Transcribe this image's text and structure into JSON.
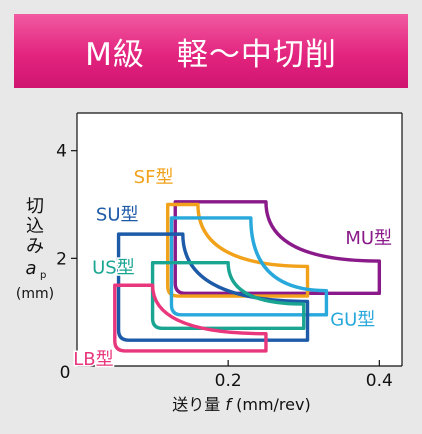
{
  "header": {
    "title": "M級　軽～中切削"
  },
  "chart_data": {
    "type": "area",
    "title": "M級　軽～中切削",
    "xlabel_prefix": "送り量",
    "xlabel_var": "f",
    "xlabel_unit": "(mm/rev)",
    "ylabel_chars": [
      "切",
      "込",
      "み"
    ],
    "ylabel_var": "a",
    "ylabel_sub": "p",
    "ylabel_unit": "(mm)",
    "xlim": [
      0,
      0.43
    ],
    "ylim": [
      0,
      4.7
    ],
    "x_ticks": [
      {
        "v": 0,
        "label": "0"
      },
      {
        "v": 0.2,
        "label": "0.2"
      },
      {
        "v": 0.4,
        "label": "0.4"
      }
    ],
    "y_ticks": [
      {
        "v": 2,
        "label": "2"
      },
      {
        "v": 4,
        "label": "4"
      }
    ],
    "origin_label": "0",
    "grid": false,
    "series": [
      {
        "name": "MU型",
        "color": "#8a1a8a",
        "x_left": 0.13,
        "x_right": 0.4,
        "y_bottom": 1.35,
        "y_top": 3.05,
        "x_knee": 0.25,
        "y_knee": 1.95,
        "label_x": 0.355,
        "label_y": 2.27
      },
      {
        "name": "SF型",
        "color": "#f2a21a",
        "x_left": 0.12,
        "x_right": 0.305,
        "y_bottom": 1.3,
        "y_top": 3.0,
        "x_knee": 0.16,
        "y_knee": 1.85,
        "label_x": 0.075,
        "label_y": 3.4
      },
      {
        "name": "GU型",
        "color": "#29a8dc",
        "x_left": 0.125,
        "x_right": 0.33,
        "y_bottom": 0.95,
        "y_top": 2.75,
        "x_knee": 0.23,
        "y_knee": 1.4,
        "label_x": 0.335,
        "label_y": 0.75
      },
      {
        "name": "SU型",
        "color": "#1d5aa8",
        "x_left": 0.055,
        "x_right": 0.305,
        "y_bottom": 0.48,
        "y_top": 2.45,
        "x_knee": 0.14,
        "y_knee": 1.2,
        "label_x": 0.025,
        "label_y": 2.7
      },
      {
        "name": "US型",
        "color": "#1aa592",
        "x_left": 0.1,
        "x_right": 0.3,
        "y_bottom": 0.7,
        "y_top": 1.92,
        "x_knee": 0.2,
        "y_knee": 1.15,
        "label_x": 0.02,
        "label_y": 1.72
      },
      {
        "name": "LB型",
        "color": "#e8377c",
        "x_left": 0.05,
        "x_right": 0.25,
        "y_bottom": 0.28,
        "y_top": 1.5,
        "x_knee": 0.1,
        "y_knee": 0.6,
        "label_x": -0.005,
        "label_y": 0.02
      }
    ]
  }
}
